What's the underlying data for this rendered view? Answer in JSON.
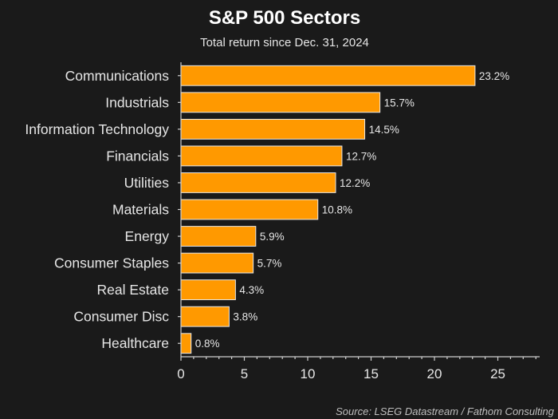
{
  "chart_data": {
    "type": "bar",
    "orientation": "horizontal",
    "title": "S&P 500 Sectors",
    "subtitle": "Total return since Dec. 31, 2024",
    "xlabel": "",
    "ylabel": "",
    "categories": [
      "Communications",
      "Industrials",
      "Information Technology",
      "Financials",
      "Utilities",
      "Materials",
      "Energy",
      "Consumer Staples",
      "Real Estate",
      "Consumer Disc",
      "Healthcare"
    ],
    "values": [
      23.2,
      15.7,
      14.5,
      12.7,
      12.2,
      10.8,
      5.9,
      5.7,
      4.3,
      3.8,
      0.8
    ],
    "value_labels": [
      "23.2%",
      "15.7%",
      "14.5%",
      "12.7%",
      "12.2%",
      "10.8%",
      "5.9%",
      "5.7%",
      "4.3%",
      "3.8%",
      "0.8%"
    ],
    "xlim": [
      0,
      28.3
    ],
    "xticks": [
      0,
      5,
      10,
      15,
      20,
      25
    ],
    "xtick_labels": [
      "0",
      "5",
      "10",
      "15",
      "20",
      "25"
    ],
    "minor_tick_step": 1,
    "grid": false,
    "legend": "none",
    "bar_color": "#ff9900",
    "bar_edge_color": "#e8e8e8",
    "background_color": "#1a1a1a",
    "source": "Source: LSEG Datastream / Fathom Consulting"
  }
}
